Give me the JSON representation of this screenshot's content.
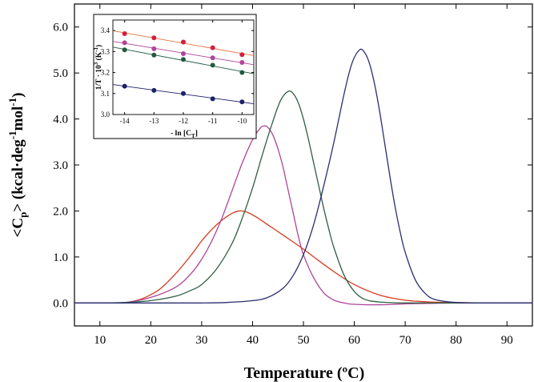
{
  "chart_data": [
    {
      "type": "line",
      "title": "",
      "xlabel": "Temperature (ºC)",
      "ylabel": "<C",
      "ylabel_sub": "p",
      "ylabel_rest": "> (kcal·deg",
      "ylabel_sup": "-1",
      "ylabel_mid": "mol",
      "ylabel_sup2": "-1",
      "ylabel_end": ")",
      "xlim": [
        5,
        95
      ],
      "ylim": [
        -0.5,
        6.5
      ],
      "x_ticks": [
        10,
        20,
        30,
        40,
        50,
        60,
        70,
        80,
        90
      ],
      "y_ticks": [
        0,
        1,
        2,
        3,
        4,
        5,
        6
      ],
      "y_tick_labels": [
        "0.0",
        "1.0",
        "2.0",
        "3.0",
        "4.0",
        "5.0",
        "6.0"
      ],
      "grid": false,
      "series": [
        {
          "color": "#d63a1c",
          "peak_x": 37.5,
          "peak_y": 2.0,
          "x": [
            5,
            10,
            15,
            18,
            20,
            22,
            25,
            28,
            30,
            32,
            34,
            36,
            37.5,
            39,
            41,
            43,
            45,
            47,
            50,
            53,
            56,
            60,
            65,
            70,
            75,
            80,
            85,
            90,
            95
          ],
          "y": [
            0,
            0,
            0.01,
            0.08,
            0.18,
            0.32,
            0.65,
            1.05,
            1.35,
            1.6,
            1.8,
            1.95,
            2.0,
            1.97,
            1.85,
            1.7,
            1.55,
            1.4,
            1.17,
            0.92,
            0.68,
            0.4,
            0.17,
            0.06,
            0.02,
            0.01,
            0,
            0,
            0
          ]
        },
        {
          "color": "#b0449a",
          "peak_x": 42.3,
          "peak_y": 3.85,
          "x": [
            5,
            10,
            15,
            20,
            25,
            28,
            30,
            32,
            34,
            36,
            38,
            40,
            41.5,
            42.3,
            43,
            44,
            45,
            46,
            47,
            48,
            49,
            50,
            52,
            54,
            56,
            58,
            60,
            65,
            70,
            80,
            95
          ],
          "y": [
            0,
            0,
            0.01,
            0.12,
            0.35,
            0.65,
            0.95,
            1.35,
            1.85,
            2.45,
            3.05,
            3.55,
            3.8,
            3.85,
            3.82,
            3.65,
            3.35,
            2.95,
            2.45,
            1.95,
            1.45,
            1.05,
            0.55,
            0.22,
            0.06,
            0.0,
            -0.03,
            -0.04,
            -0.02,
            0,
            0
          ]
        },
        {
          "color": "#2e5e43",
          "peak_x": 47,
          "peak_y": 4.6,
          "x": [
            5,
            10,
            15,
            20,
            25,
            28,
            30,
            33,
            36,
            38,
            40,
            42,
            44,
            45.5,
            47,
            48,
            49,
            50,
            51,
            52,
            53,
            54,
            55,
            56,
            58,
            60,
            62,
            65,
            70,
            80,
            95
          ],
          "y": [
            0,
            0,
            0.01,
            0.05,
            0.15,
            0.28,
            0.4,
            0.75,
            1.3,
            1.85,
            2.5,
            3.25,
            3.95,
            4.4,
            4.6,
            4.55,
            4.35,
            4.0,
            3.55,
            3.05,
            2.55,
            2.05,
            1.6,
            1.2,
            0.6,
            0.25,
            0.08,
            0.02,
            0,
            0,
            0
          ]
        },
        {
          "color": "#2c2d73",
          "peak_x": 61,
          "peak_y": 5.5,
          "x": [
            5,
            20,
            30,
            35,
            40,
            43,
            46,
            48,
            50,
            52,
            54,
            56,
            58,
            59.5,
            61,
            62,
            63,
            64,
            65,
            66,
            67,
            68,
            69,
            70,
            72,
            74,
            76,
            80,
            85,
            95
          ],
          "y": [
            0,
            0,
            0,
            0.01,
            0.05,
            0.12,
            0.32,
            0.6,
            1.05,
            1.7,
            2.55,
            3.5,
            4.55,
            5.2,
            5.5,
            5.45,
            5.2,
            4.75,
            4.15,
            3.45,
            2.75,
            2.1,
            1.55,
            1.1,
            0.5,
            0.2,
            0.07,
            0.01,
            0,
            0
          ]
        }
      ]
    },
    {
      "type": "scatter",
      "title": "",
      "xlabel": "- ln [C",
      "xlabel_sub": "T",
      "xlabel_end": "]",
      "ylabel": "1/T · 10",
      "ylabel_sup": "3",
      "ylabel_mid": " (K",
      "ylabel_sup2": "-1",
      "ylabel_end": ")",
      "xlim": [
        -14.4,
        -9.6
      ],
      "ylim": [
        3.0,
        3.45
      ],
      "x_ticks": [
        -14,
        -13,
        -12,
        -11,
        -10
      ],
      "y_ticks": [
        3.0,
        3.1,
        3.2,
        3.3,
        3.4
      ],
      "y_tick_labels": [
        "3.0",
        "3.1",
        "3.2",
        "3.3",
        "3.4"
      ],
      "grid": false,
      "series": [
        {
          "color": "#d21f3c",
          "line_color": "#e8743a",
          "x": [
            -14,
            -13,
            -12,
            -11,
            -10
          ],
          "y": [
            3.385,
            3.365,
            3.345,
            3.318,
            3.285
          ]
        },
        {
          "color": "#b0449a",
          "line_color": "#b0449a",
          "x": [
            -14,
            -13,
            -12,
            -11,
            -10
          ],
          "y": [
            3.342,
            3.313,
            3.29,
            3.27,
            3.248
          ]
        },
        {
          "color": "#1f5b40",
          "line_color": "#1f5b40",
          "x": [
            -14,
            -13,
            -12,
            -11,
            -10
          ],
          "y": [
            3.308,
            3.283,
            3.262,
            3.235,
            3.2
          ]
        },
        {
          "color": "#1a2168",
          "line_color": "#1a2168",
          "x": [
            -14,
            -13,
            -12,
            -11,
            -10
          ],
          "y": [
            3.135,
            3.115,
            3.1,
            3.075,
            3.06
          ]
        }
      ]
    }
  ]
}
